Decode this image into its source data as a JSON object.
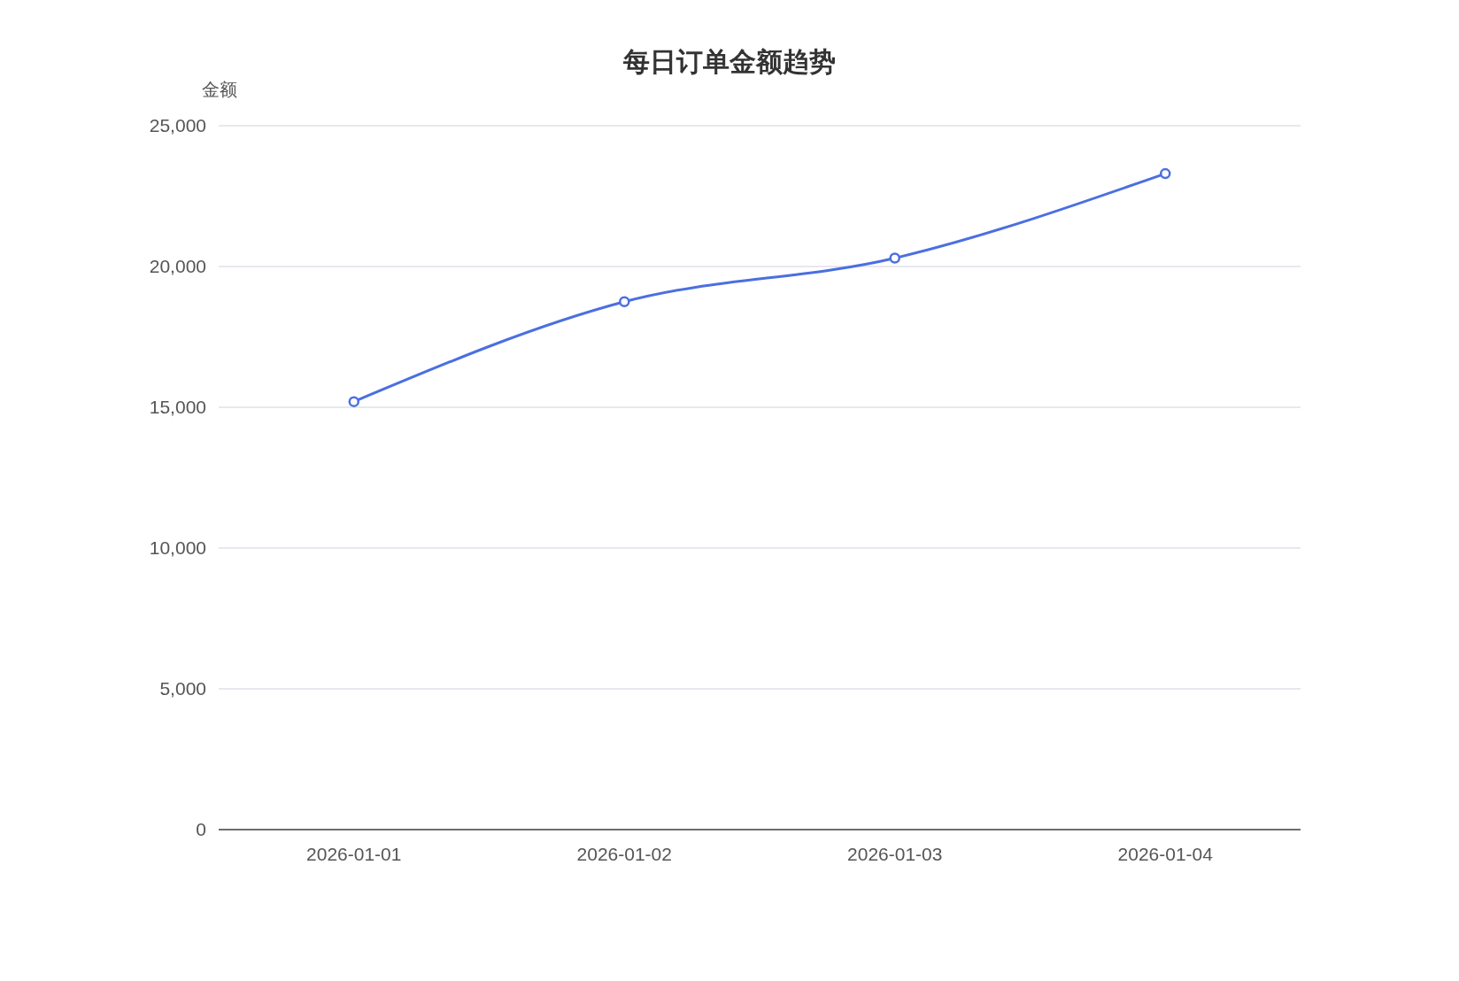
{
  "chart_data": {
    "type": "line",
    "title": "每日订单金额趋势",
    "ylabel": "金额",
    "categories": [
      "2026-01-01",
      "2026-01-02",
      "2026-01-03",
      "2026-01-04"
    ],
    "series": [
      {
        "color": "#4b6fe0",
        "values": [
          15200,
          18750,
          20300,
          23300
        ]
      }
    ],
    "ylim": [
      0,
      25000
    ],
    "yticks": [
      {
        "value": 0,
        "label": "0"
      },
      {
        "value": 5000,
        "label": "5,000"
      },
      {
        "value": 10000,
        "label": "10,000"
      },
      {
        "value": 15000,
        "label": "15,000"
      },
      {
        "value": 20000,
        "label": "20,000"
      },
      {
        "value": 25000,
        "label": "25,000"
      }
    ],
    "grid": "y",
    "marker": "circle",
    "line_style": "solid"
  }
}
